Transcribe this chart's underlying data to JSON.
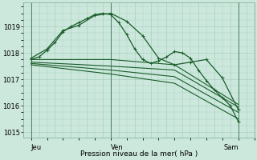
{
  "bg_color": "#cce8dc",
  "grid_color": "#aad0c0",
  "line_color": "#1a5c2a",
  "title": "Pression niveau de la mer( hPa )",
  "xlabel_jeu": "Jeu",
  "xlabel_ven": "Ven",
  "xlabel_sam": "Sam",
  "ylim": [
    1014.8,
    1019.9
  ],
  "yticks": [
    1015,
    1016,
    1017,
    1018,
    1019
  ],
  "xlim": [
    0,
    14.5
  ],
  "jeu_x": 0.5,
  "ven_x": 5.5,
  "sam_x": 13.5,
  "series": [
    {
      "x": [
        0.5,
        1.0,
        1.5,
        2.0,
        2.5,
        3.0,
        3.5,
        4.0,
        4.5,
        5.0,
        5.5,
        6.0,
        6.5,
        7.0,
        7.5,
        8.0,
        8.5,
        9.0,
        9.5,
        10.0,
        10.5,
        11.0,
        11.5,
        12.0,
        12.5,
        13.0,
        13.5
      ],
      "y": [
        1017.75,
        1017.85,
        1018.1,
        1018.4,
        1018.8,
        1019.0,
        1019.15,
        1019.3,
        1019.45,
        1019.5,
        1019.45,
        1019.15,
        1018.7,
        1018.15,
        1017.75,
        1017.6,
        1017.7,
        1017.85,
        1018.05,
        1018.0,
        1017.8,
        1017.35,
        1016.95,
        1016.6,
        1016.3,
        1016.0,
        1015.4
      ],
      "marker": "+",
      "ms": 3.5,
      "lw": 0.9
    },
    {
      "x": [
        0.5,
        1.5,
        2.5,
        3.5,
        4.5,
        5.5,
        6.5,
        7.5,
        8.5,
        9.5,
        10.5,
        11.5,
        12.5,
        13.5
      ],
      "y": [
        1017.8,
        1018.15,
        1018.85,
        1019.05,
        1019.42,
        1019.5,
        1019.2,
        1018.65,
        1017.8,
        1017.55,
        1017.65,
        1017.75,
        1017.05,
        1015.85
      ],
      "marker": "+",
      "ms": 3.5,
      "lw": 0.9
    },
    {
      "x": [
        0.5,
        5.5,
        9.5,
        13.5
      ],
      "y": [
        1017.75,
        1017.75,
        1017.55,
        1016.05
      ],
      "marker": null,
      "ms": 0,
      "lw": 0.8
    },
    {
      "x": [
        0.5,
        5.5,
        9.5,
        13.5
      ],
      "y": [
        1017.65,
        1017.5,
        1017.35,
        1015.95
      ],
      "marker": null,
      "ms": 0,
      "lw": 0.8
    },
    {
      "x": [
        0.5,
        5.5,
        9.5,
        13.5
      ],
      "y": [
        1017.6,
        1017.35,
        1017.1,
        1015.75
      ],
      "marker": null,
      "ms": 0,
      "lw": 0.8
    },
    {
      "x": [
        0.5,
        5.5,
        9.5,
        13.5
      ],
      "y": [
        1017.55,
        1017.2,
        1016.85,
        1015.5
      ],
      "marker": null,
      "ms": 0,
      "lw": 0.8
    }
  ]
}
